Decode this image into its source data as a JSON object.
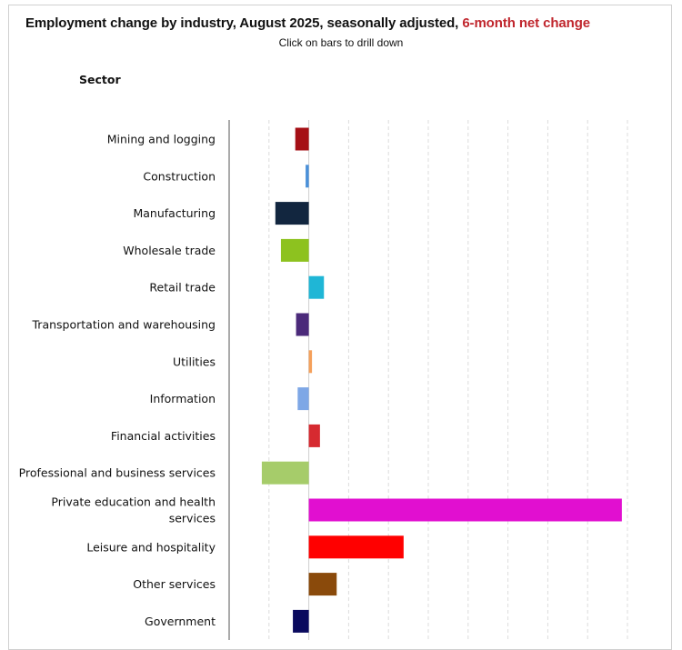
{
  "title": {
    "main": "Employment change by industry, August 2025, seasonally adjusted, ",
    "accent": "6-month net change",
    "accent_color": "#c0262d"
  },
  "subtitle": "Click on bars to drill down",
  "sector_header": "Sector",
  "chart_data": {
    "type": "bar",
    "orientation": "horizontal",
    "title": "Employment change by industry, August 2025, seasonally adjusted, 6-month net change",
    "xlabel": "",
    "ylabel": "Sector",
    "xlim": [
      -100,
      400
    ],
    "grid": true,
    "categories": [
      "Mining and logging",
      "Construction",
      "Manufacturing",
      "Wholesale trade",
      "Retail trade",
      "Transportation and warehousing",
      "Utilities",
      "Information",
      "Financial activities",
      "Professional and business services",
      "Private education and health services",
      "Leisure and hospitality",
      "Other services",
      "Government"
    ],
    "values": [
      -17,
      -4,
      -42,
      -35,
      19,
      -16,
      4,
      -14,
      14,
      -59,
      393,
      119,
      35,
      -20
    ],
    "colors": [
      "#a50f15",
      "#4a90d9",
      "#12263f",
      "#8dc21f",
      "#1fb6d6",
      "#4b2a7a",
      "#f5a05a",
      "#7ea7e6",
      "#d62a30",
      "#a6cc6a",
      "#e10fd0",
      "#ff0000",
      "#8a4a0b",
      "#0a0a5e"
    ]
  }
}
